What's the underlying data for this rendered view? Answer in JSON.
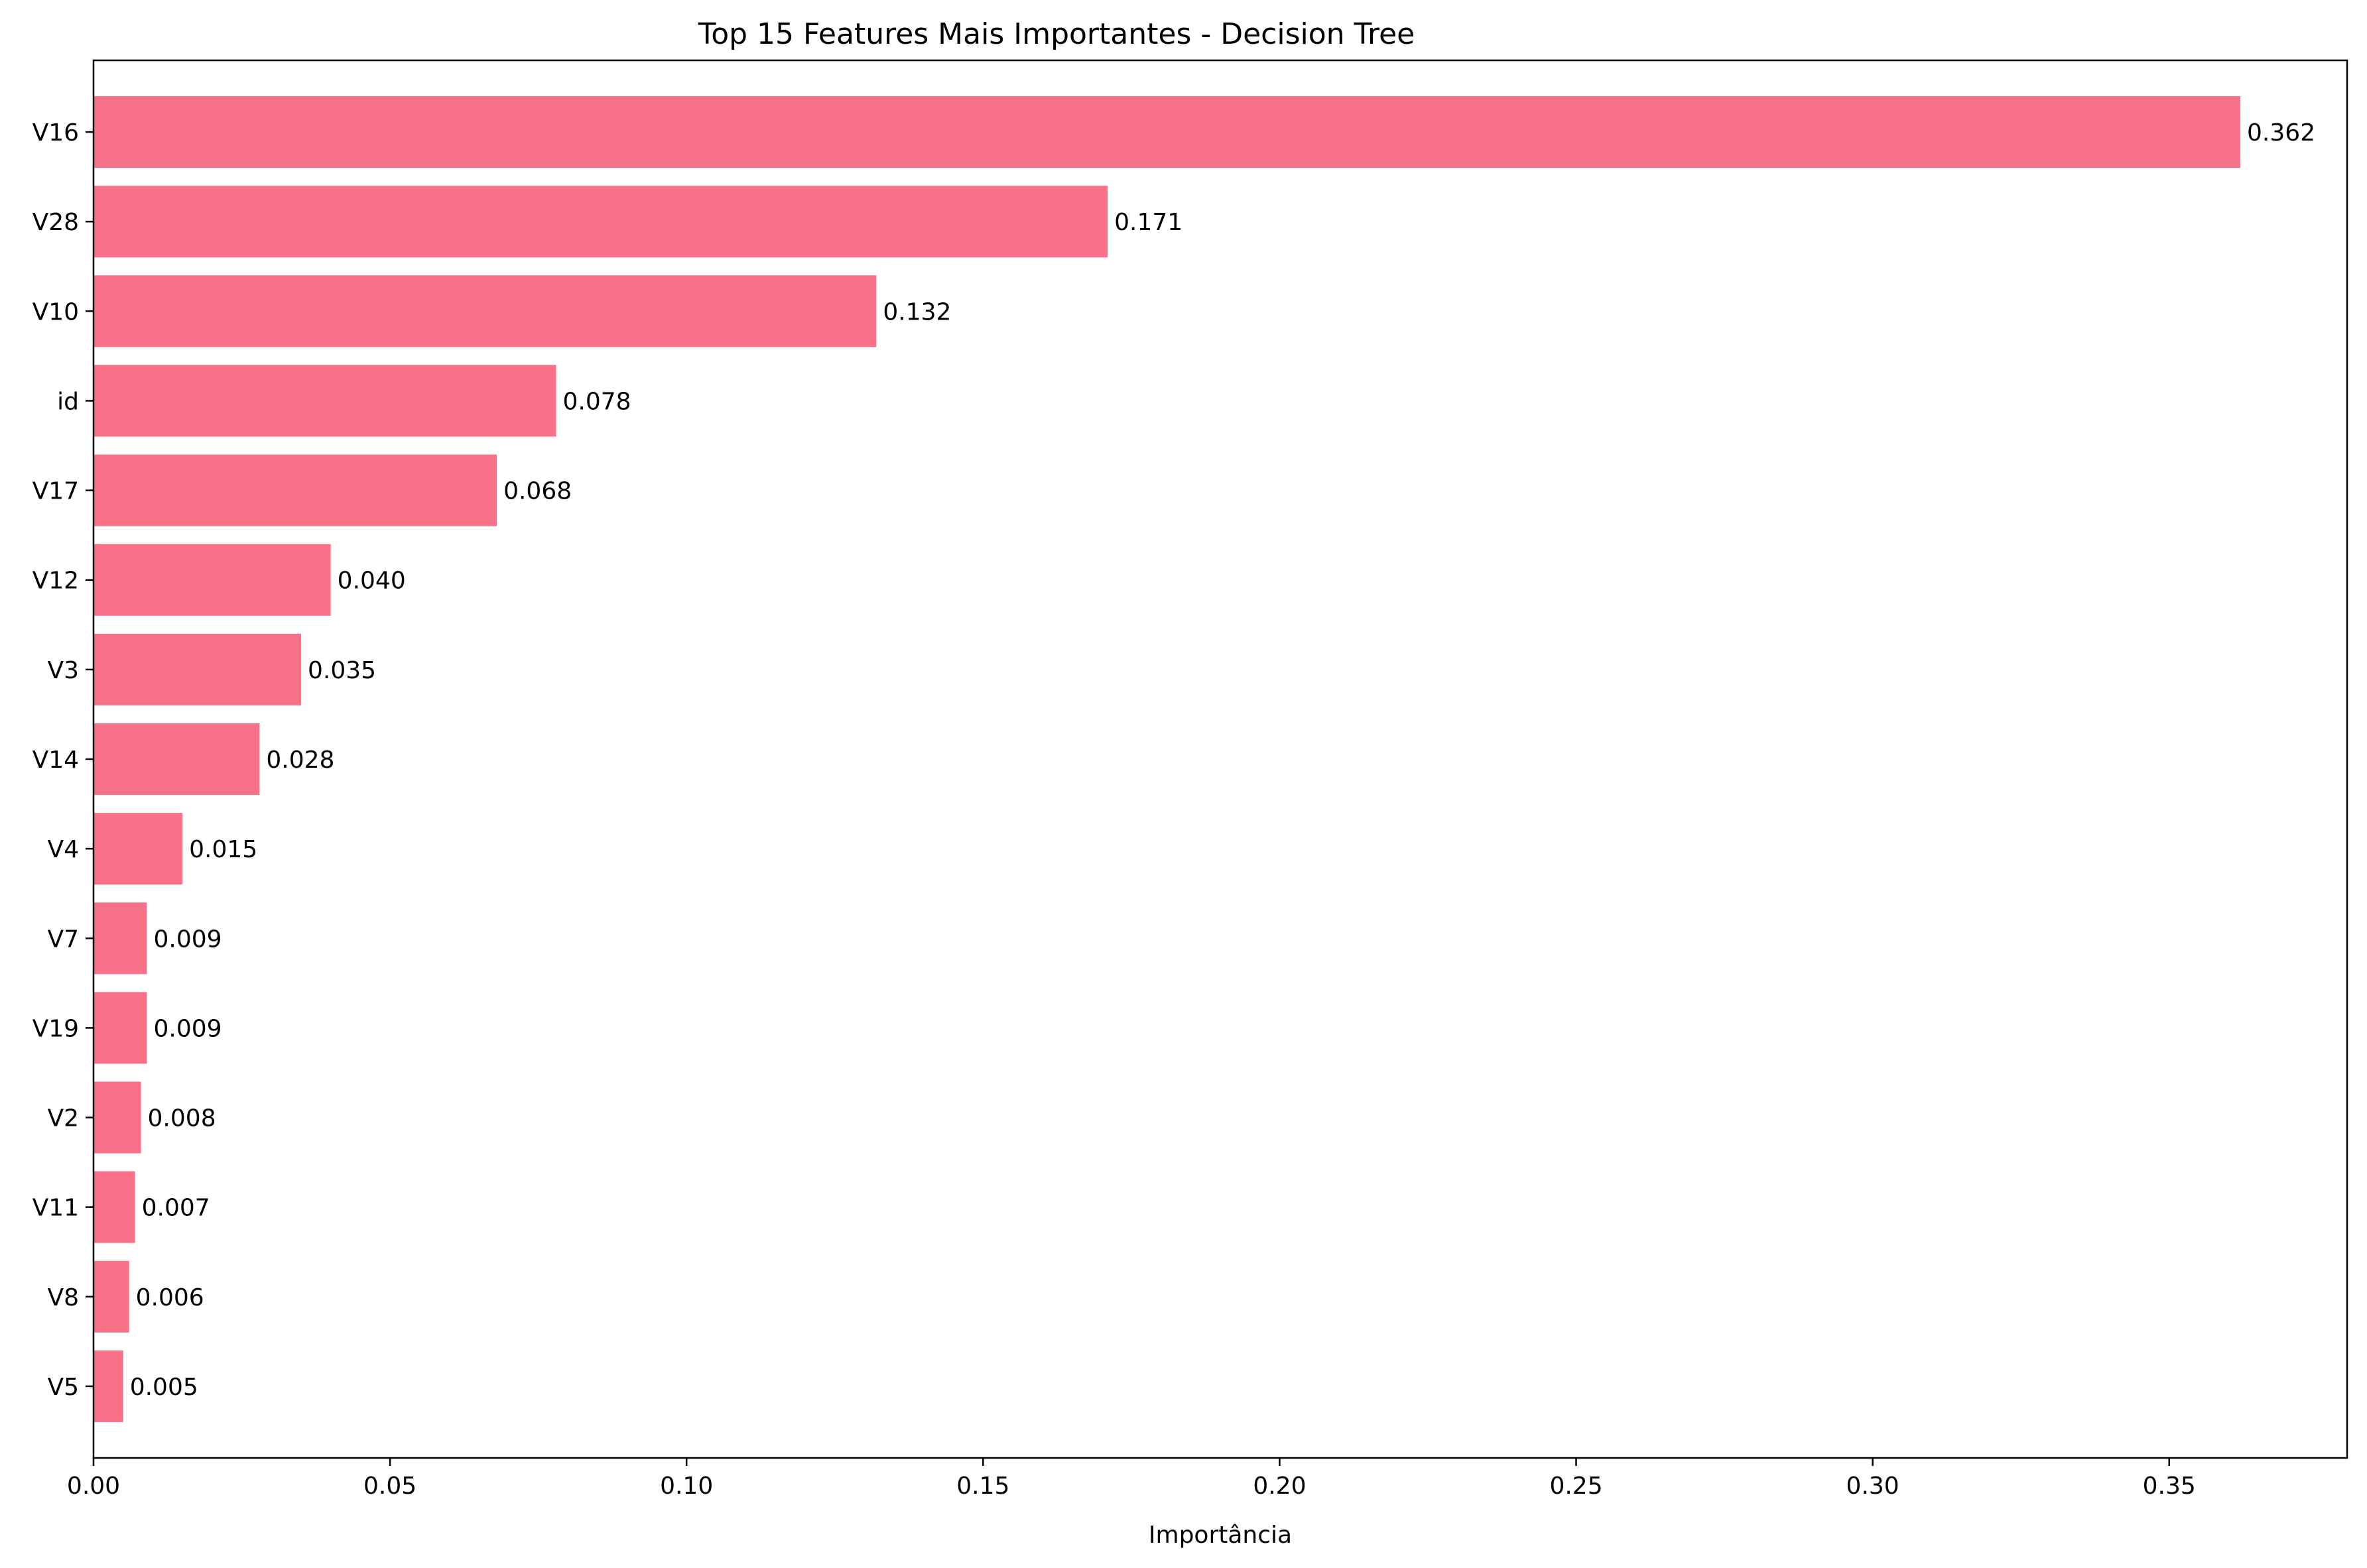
{
  "chart_data": {
    "type": "bar",
    "orientation": "horizontal",
    "title": "Top 15 Features Mais Importantes - Decision Tree",
    "xlabel": "Importância",
    "ylabel": "",
    "xlim": [
      0,
      0.38
    ],
    "x_ticks": [
      0.0,
      0.05,
      0.1,
      0.15,
      0.2,
      0.25,
      0.3,
      0.35
    ],
    "x_tick_labels": [
      "0.00",
      "0.05",
      "0.10",
      "0.15",
      "0.20",
      "0.25",
      "0.30",
      "0.35"
    ],
    "grid": false,
    "bar_color": "#f77189",
    "categories": [
      "V16",
      "V28",
      "V10",
      "id",
      "V17",
      "V12",
      "V3",
      "V14",
      "V4",
      "V7",
      "V19",
      "V2",
      "V11",
      "V8",
      "V5"
    ],
    "values": [
      0.362,
      0.171,
      0.132,
      0.078,
      0.068,
      0.04,
      0.035,
      0.028,
      0.015,
      0.009,
      0.009,
      0.008,
      0.007,
      0.006,
      0.005
    ],
    "value_labels": [
      "0.362",
      "0.171",
      "0.132",
      "0.078",
      "0.068",
      "0.040",
      "0.035",
      "0.028",
      "0.015",
      "0.009",
      "0.009",
      "0.008",
      "0.007",
      "0.006",
      "0.005"
    ]
  }
}
